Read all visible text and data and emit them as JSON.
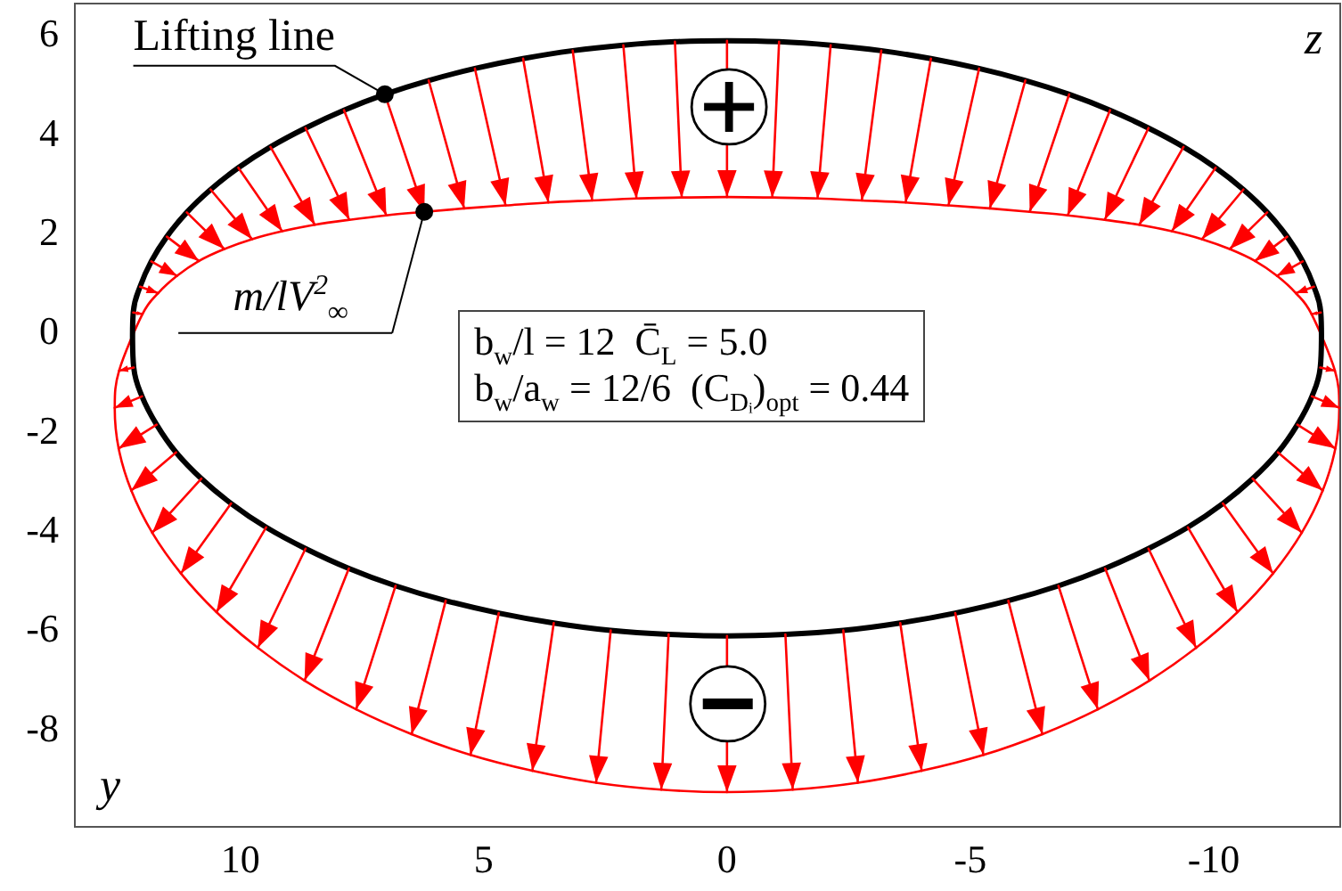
{
  "chart_data": {
    "type": "line",
    "xlabel": "y",
    "ylabel": "z",
    "xlim": [
      13.4,
      -12.6
    ],
    "ylim": [
      -10,
      6.6
    ],
    "xticks": [
      10,
      5,
      0,
      -5,
      -10
    ],
    "yticks": [
      6,
      4,
      2,
      0,
      -2,
      -4,
      -6,
      -8
    ],
    "annotations": [
      {
        "text": "Lifting line",
        "x": 7.03,
        "y": 4.77
      },
      {
        "text": "m/lV$^{2}$$_{∞}$",
        "x": 6.22,
        "y": 2.4
      },
      "b$_{w}$/l = 12  C̄$_{L}$ = 5.0",
      "b$_{w}$/a$_{w}$ = 12/6  (C$_{Dᵢ}$)$_{opt}$ = 0.44"
    ],
    "series": [
      {
        "color": "#ff0000",
        "x": [
          12.2,
          12.01,
          null,
          12.06,
          11.69,
          null,
          11.83,
          11.3,
          null,
          11.51,
          10.85,
          null,
          11.1,
          10.33,
          null,
          10.61,
          9.76,
          null,
          10.04,
          9.14,
          null,
          9.38,
          8.47,
          null,
          8.66,
          7.76,
          null,
          7.87,
          7.0,
          null,
          7.03,
          6.22,
          null,
          6.13,
          5.4,
          null,
          5.18,
          4.55,
          null,
          4.19,
          3.67,
          null,
          3.17,
          2.77,
          null,
          2.13,
          1.86,
          null,
          1.07,
          0.93,
          null,
          0,
          0,
          null,
          -1.07,
          -0.93,
          null,
          -2.13,
          -1.86,
          null,
          -3.17,
          -2.77,
          null,
          -4.19,
          -3.67,
          null,
          -5.18,
          -4.55,
          null,
          -6.13,
          -5.4,
          null,
          -7.03,
          -6.22,
          null,
          -7.87,
          -7.0,
          null,
          -8.66,
          -7.76,
          null,
          -9.38,
          -8.47,
          null,
          -10.04,
          -9.14,
          null,
          -10.61,
          -9.76,
          null,
          -11.1,
          -10.33,
          null,
          -11.51,
          -10.85,
          null,
          -11.83,
          -11.3,
          null,
          -12.06,
          -11.69,
          null,
          -12.2,
          -12.01
        ],
        "values": [
          0.37,
          0.34,
          null,
          0.89,
          0.76,
          null,
          1.4,
          1.11,
          null,
          1.9,
          1.41,
          null,
          2.39,
          1.65,
          null,
          2.85,
          1.85,
          null,
          3.29,
          2.01,
          null,
          3.71,
          2.14,
          null,
          4.09,
          2.24,
          null,
          4.45,
          2.33,
          null,
          4.77,
          2.4,
          null,
          5.05,
          2.47,
          null,
          5.29,
          2.53,
          null,
          5.49,
          2.59,
          null,
          5.65,
          2.63,
          null,
          5.76,
          2.67,
          null,
          5.83,
          2.69,
          null,
          5.85,
          2.7,
          null,
          5.83,
          2.69,
          null,
          5.76,
          2.67,
          null,
          5.65,
          2.63,
          null,
          5.49,
          2.59,
          null,
          5.29,
          2.53,
          null,
          5.05,
          2.47,
          null,
          4.77,
          2.4,
          null,
          4.45,
          2.33,
          null,
          4.09,
          2.24,
          null,
          3.71,
          2.14,
          null,
          3.29,
          2.01,
          null,
          2.85,
          1.85,
          null,
          2.39,
          1.65,
          null,
          1.9,
          1.41,
          null,
          1.4,
          1.11,
          null,
          0.89,
          0.76,
          null,
          0.37,
          0.34
        ]
      },
      {
        "color": "#ff0000",
        "x": [
          12.19,
          12.49,
          null,
          12.02,
          12.58,
          null,
          11.72,
          12.5,
          null,
          11.32,
          12.24,
          null,
          10.8,
          11.81,
          null,
          10.19,
          11.22,
          null,
          9.47,
          10.49,
          null,
          8.66,
          9.64,
          null,
          7.77,
          8.68,
          null,
          6.81,
          7.62,
          null,
          5.78,
          6.48,
          null,
          4.69,
          5.27,
          null,
          3.56,
          4.0,
          null,
          2.39,
          2.69,
          null,
          1.2,
          1.35,
          null,
          0,
          0,
          null,
          -1.2,
          -1.35,
          null,
          -2.39,
          -2.69,
          null,
          -3.56,
          -4.0,
          null,
          -4.69,
          -5.27,
          null,
          -5.78,
          -6.48,
          null,
          -6.81,
          -7.62,
          null,
          -7.77,
          -8.68,
          null,
          -8.66,
          -9.64,
          null,
          -9.47,
          -10.49,
          null,
          -10.19,
          -11.22,
          null,
          -10.8,
          -11.81,
          null,
          -11.32,
          -12.24,
          null,
          -11.72,
          -12.5,
          null,
          -12.02,
          -12.58,
          null,
          -12.19,
          -12.49
        ],
        "values": [
          -0.74,
          -0.8,
          null,
          -1.32,
          -1.55,
          null,
          -1.89,
          -2.37,
          null,
          -2.45,
          -3.22,
          null,
          -2.98,
          -4.07,
          null,
          -3.48,
          -4.89,
          null,
          -3.96,
          -5.67,
          null,
          -4.39,
          -6.39,
          null,
          -4.79,
          -7.05,
          null,
          -5.14,
          -7.63,
          null,
          -5.44,
          -8.13,
          null,
          -5.69,
          -8.55,
          null,
          -5.89,
          -8.87,
          null,
          -6.04,
          -9.11,
          null,
          -6.12,
          -9.25,
          null,
          -6.15,
          -9.3,
          null,
          -6.12,
          -9.25,
          null,
          -6.04,
          -9.11,
          null,
          -5.89,
          -8.87,
          null,
          -5.69,
          -8.55,
          null,
          -5.44,
          -8.13,
          null,
          -5.14,
          -7.63,
          null,
          -4.79,
          -7.05,
          null,
          -4.39,
          -6.39,
          null,
          -3.96,
          -5.67,
          null,
          -3.48,
          -4.89,
          null,
          -2.98,
          -4.07,
          null,
          -2.45,
          -3.22,
          null,
          -1.89,
          -2.37,
          null,
          -1.32,
          -1.55,
          null,
          -0.74,
          -0.8
        ]
      }
    ]
  }
}
